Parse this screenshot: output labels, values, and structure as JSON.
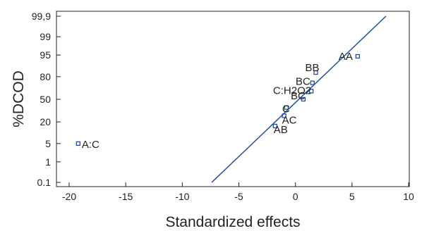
{
  "chart_data": {
    "type": "scatter",
    "title": "",
    "xlabel": "Standardized effects",
    "ylabel": "%DCOD",
    "xlim": [
      -20,
      10
    ],
    "x_ticks": [
      -20,
      -15,
      -10,
      -5,
      0,
      5,
      10
    ],
    "y_ticks": [
      "0.1",
      "1",
      "5",
      "20",
      "50",
      "80",
      "95",
      "99",
      "99,9"
    ],
    "y_tick_percent": [
      0.1,
      1,
      5,
      20,
      50,
      80,
      95,
      99,
      99.9
    ],
    "y_probability_scale": true,
    "grid": false,
    "points": [
      {
        "label": "A:C",
        "x": -19.2,
        "y": 5.0
      },
      {
        "label": "AB",
        "x": -1.8,
        "y": 16.0
      },
      {
        "label": "AC",
        "x": -1.0,
        "y": 27.0
      },
      {
        "label": "C",
        "x": -0.8,
        "y": 38.0
      },
      {
        "label": "BC",
        "x": 0.7,
        "y": 50.0
      },
      {
        "label": "C:H2O2",
        "x": 1.4,
        "y": 62.0
      },
      {
        "label": "BC",
        "x": 1.5,
        "y": 73.0
      },
      {
        "label": "BB",
        "x": 1.8,
        "y": 84.0
      },
      {
        "label": "AA",
        "x": 5.5,
        "y": 94.5
      }
    ],
    "reference_line": {
      "x": [
        -7.4,
        8.0
      ],
      "y": [
        0.1,
        99.9
      ]
    },
    "colors": {
      "line": "#1f4e9c",
      "marker": "#1f4e9c",
      "axis": "#222222"
    }
  }
}
